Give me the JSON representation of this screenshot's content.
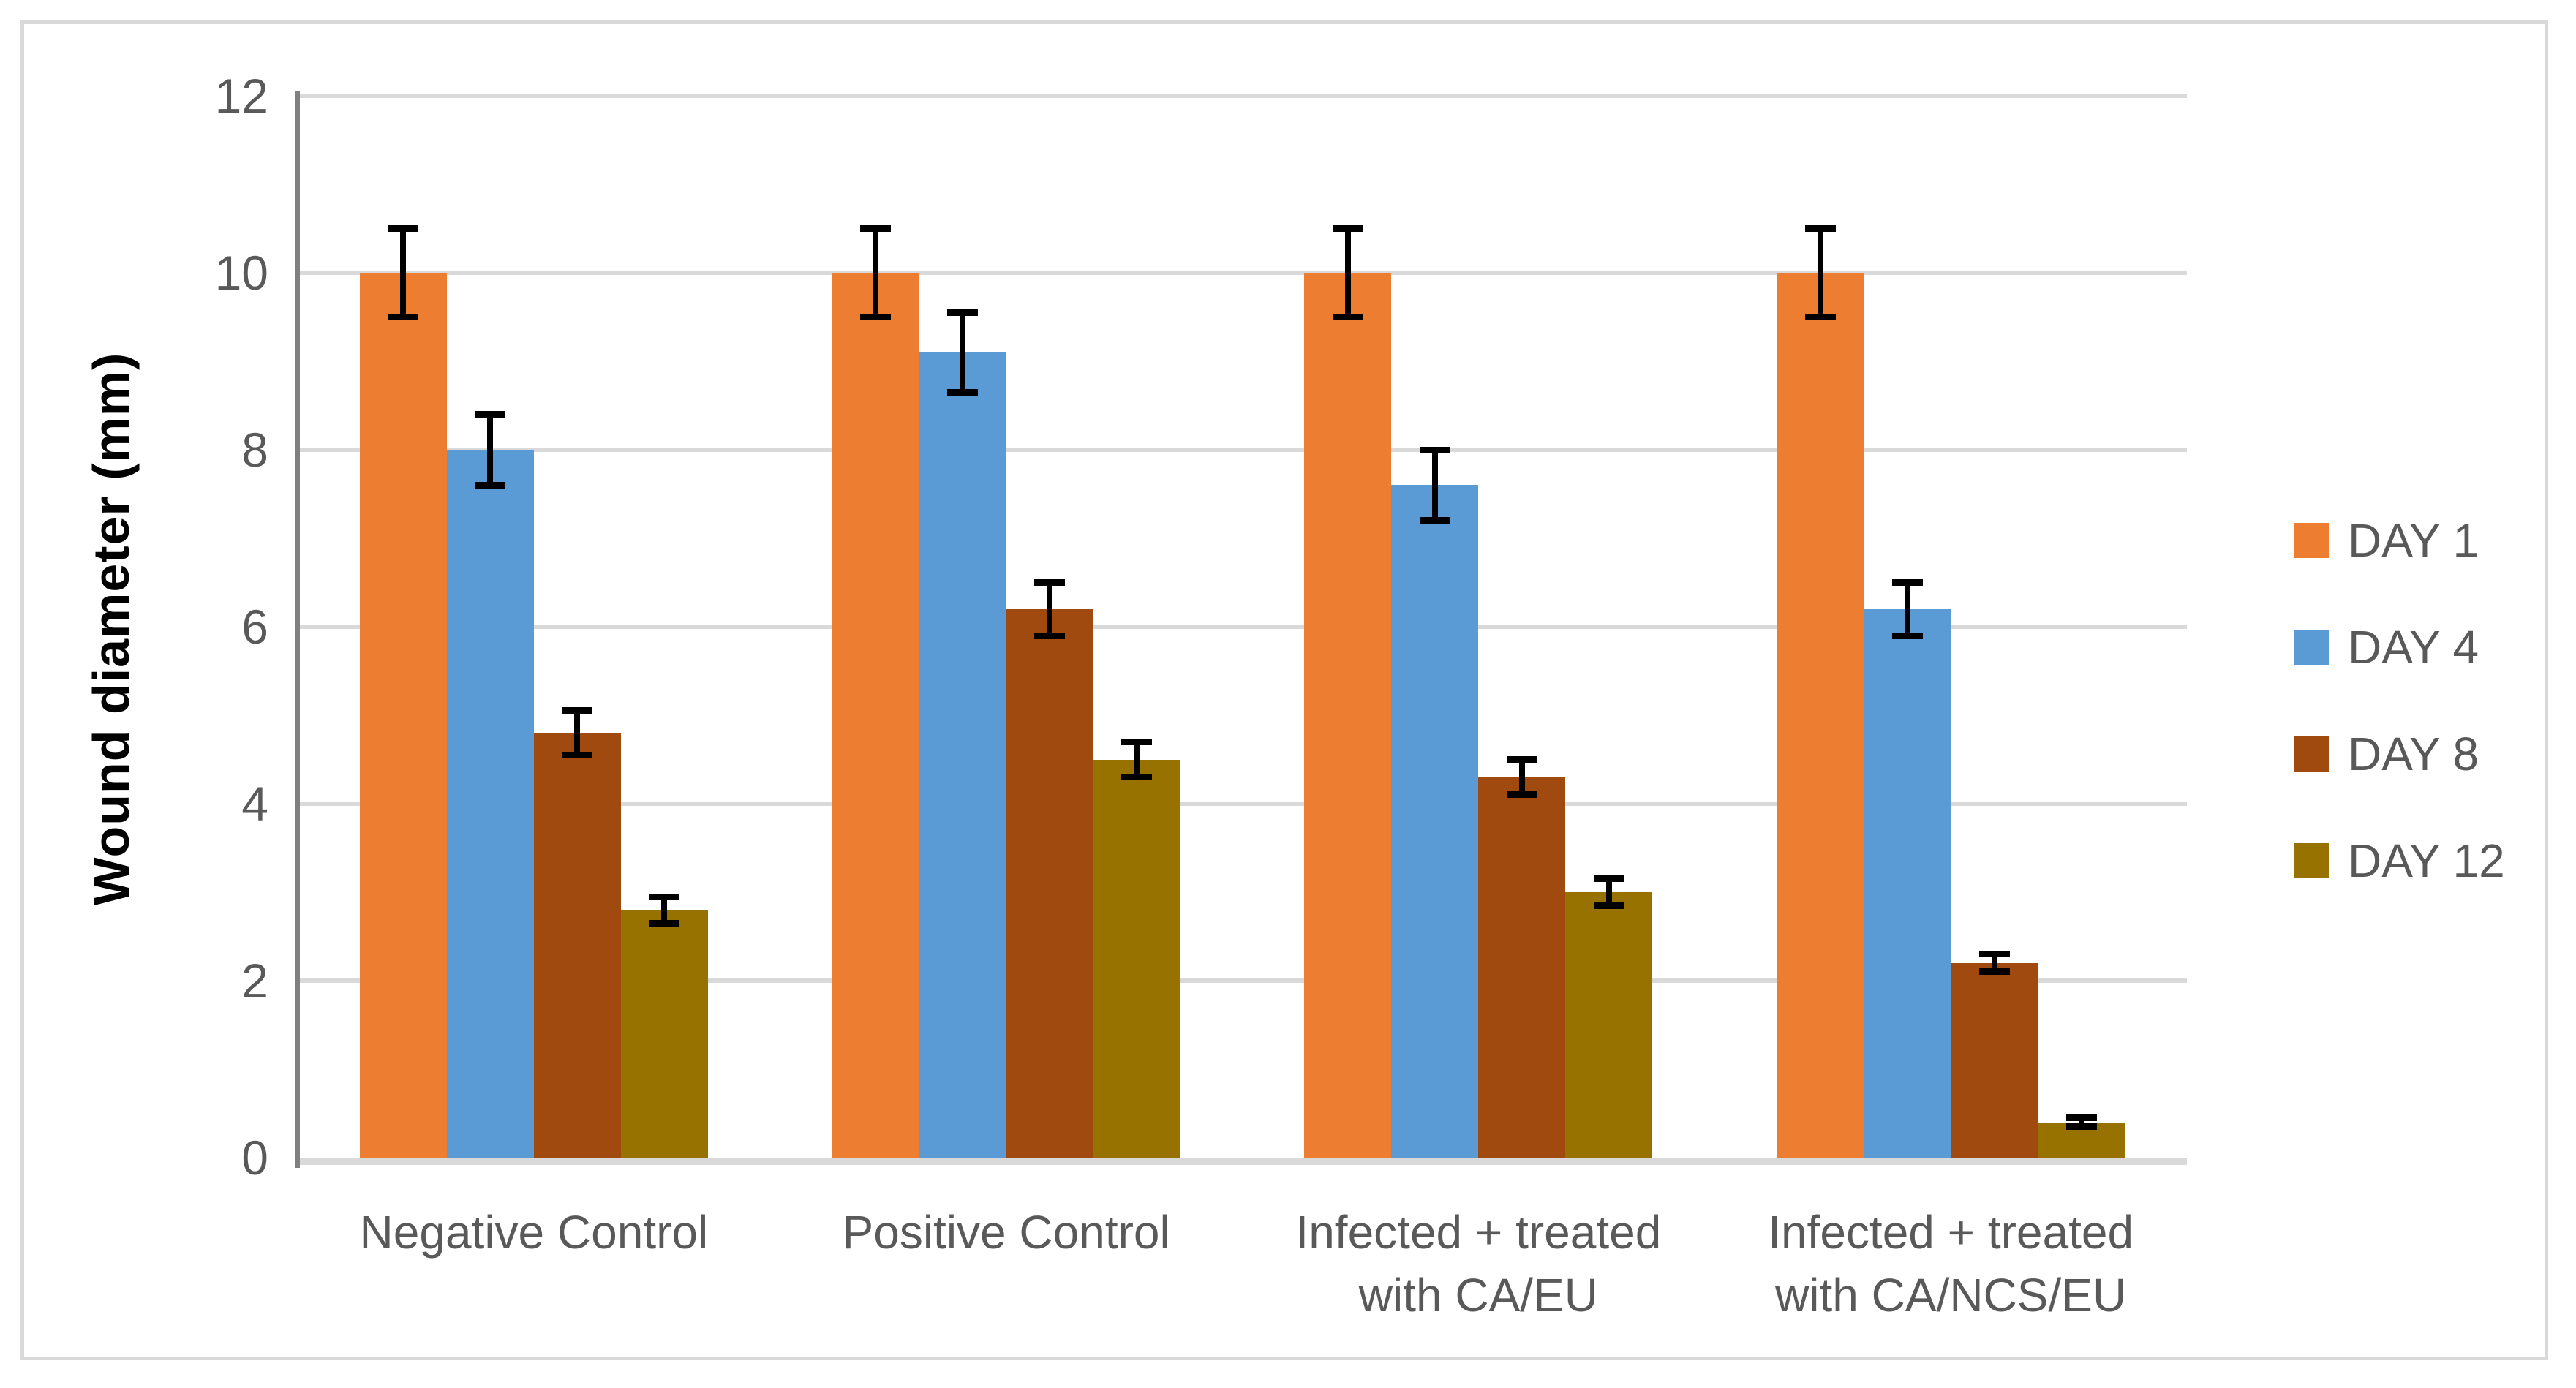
{
  "figure": {
    "background_color": "#FFFFFF",
    "border_color": "#D9D9D9"
  },
  "axes": {
    "gridline_color": "#D9D9D9",
    "axis_line_color": "#808080",
    "tick_label_color": "#595959",
    "category_label_color": "#595959",
    "y_title_color": "#000000"
  },
  "chart_data": {
    "type": "bar",
    "title": "",
    "xlabel": "",
    "ylabel": "Wound diameter (mm)",
    "ylim": [
      0,
      12
    ],
    "yticks": [
      0,
      2,
      4,
      6,
      8,
      10,
      12
    ],
    "grid": true,
    "legend_position": "right",
    "error_bars": true,
    "error_bar_color": "#000000",
    "categories": [
      "Negative Control",
      "Positive Control",
      "Infected + treated\nwith CA/EU",
      "Infected + treated\nwith CA/NCS/EU"
    ],
    "series": [
      {
        "name": "DAY 1",
        "color": "#ED7D31",
        "values": [
          10.0,
          10.0,
          10.0,
          10.0
        ],
        "errors": [
          0.5,
          0.5,
          0.5,
          0.5
        ]
      },
      {
        "name": "DAY 4",
        "color": "#5B9BD5",
        "values": [
          8.0,
          9.1,
          7.6,
          6.2
        ],
        "errors": [
          0.4,
          0.45,
          0.4,
          0.3
        ]
      },
      {
        "name": "DAY 8",
        "color": "#A04A10",
        "values": [
          4.8,
          6.2,
          4.3,
          2.2
        ],
        "errors": [
          0.25,
          0.3,
          0.2,
          0.1
        ]
      },
      {
        "name": "DAY 12",
        "color": "#987200",
        "values": [
          2.8,
          4.5,
          3.0,
          0.4
        ],
        "errors": [
          0.15,
          0.2,
          0.15,
          0.05
        ]
      }
    ]
  }
}
